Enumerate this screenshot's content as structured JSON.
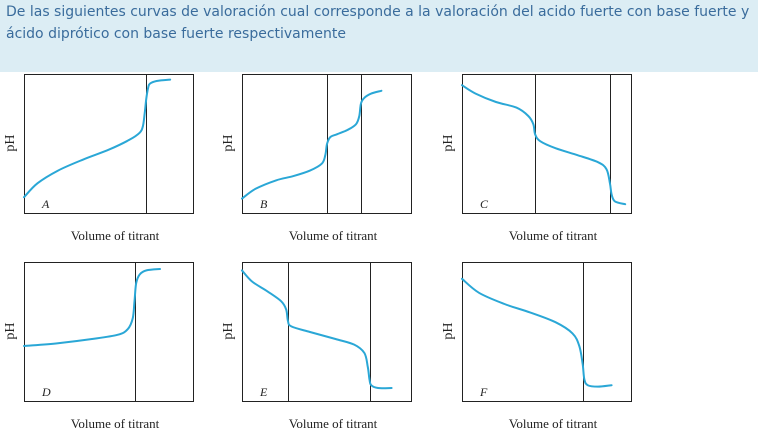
{
  "question": {
    "text": "De las siguientes curvas de valoración cual corresponde a la valoración del acido fuerte con base fuerte y ácido diprótico con base fuerte respectivamente"
  },
  "colors": {
    "curve": "#2aa7d6",
    "frame": "#222222",
    "question_bg": "#dcedf4",
    "question_text": "#3a6c9c"
  },
  "chart_data": [
    {
      "type": "line",
      "letter": "A",
      "ylabel": "pH",
      "xlabel": "Volume of titrant",
      "description_shape": "rising single step",
      "xlim": [
        0,
        1
      ],
      "ylim": [
        0,
        1
      ],
      "equivalence_x": [
        0.72
      ],
      "x": [
        0.0,
        0.08,
        0.2,
        0.35,
        0.5,
        0.62,
        0.68,
        0.7,
        0.71,
        0.72,
        0.73,
        0.74,
        0.78,
        0.86
      ],
      "y": [
        0.12,
        0.22,
        0.31,
        0.39,
        0.46,
        0.53,
        0.58,
        0.63,
        0.72,
        0.83,
        0.9,
        0.93,
        0.95,
        0.96
      ]
    },
    {
      "type": "line",
      "letter": "B",
      "ylabel": "pH",
      "xlabel": "Volume of titrant",
      "xlim": [
        0,
        1
      ],
      "ylim": [
        0,
        1
      ],
      "equivalence_x": [
        0.5,
        0.7
      ],
      "x": [
        0.0,
        0.08,
        0.2,
        0.3,
        0.4,
        0.47,
        0.49,
        0.5,
        0.52,
        0.56,
        0.62,
        0.67,
        0.69,
        0.7,
        0.72,
        0.76,
        0.82
      ],
      "y": [
        0.11,
        0.18,
        0.24,
        0.27,
        0.31,
        0.36,
        0.42,
        0.5,
        0.55,
        0.57,
        0.6,
        0.64,
        0.7,
        0.79,
        0.83,
        0.86,
        0.88
      ]
    },
    {
      "type": "line",
      "letter": "C",
      "ylabel": "pH",
      "xlabel": "Volume of titrant",
      "xlim": [
        0,
        1
      ],
      "ylim": [
        0,
        1
      ],
      "equivalence_x": [
        0.43,
        0.87
      ],
      "x": [
        0.0,
        0.08,
        0.2,
        0.32,
        0.39,
        0.42,
        0.43,
        0.46,
        0.55,
        0.68,
        0.8,
        0.85,
        0.87,
        0.88,
        0.9,
        0.96
      ],
      "y": [
        0.92,
        0.86,
        0.8,
        0.76,
        0.7,
        0.64,
        0.57,
        0.52,
        0.47,
        0.42,
        0.37,
        0.32,
        0.22,
        0.14,
        0.09,
        0.07
      ]
    },
    {
      "type": "line",
      "letter": "D",
      "ylabel": "pH",
      "xlabel": "Volume of titrant",
      "xlim": [
        0,
        1
      ],
      "ylim": [
        0,
        1
      ],
      "equivalence_x": [
        0.65
      ],
      "x": [
        0.0,
        0.2,
        0.4,
        0.55,
        0.61,
        0.64,
        0.65,
        0.66,
        0.68,
        0.72,
        0.8
      ],
      "y": [
        0.4,
        0.42,
        0.45,
        0.48,
        0.52,
        0.6,
        0.72,
        0.85,
        0.91,
        0.94,
        0.95
      ]
    },
    {
      "type": "line",
      "letter": "E",
      "ylabel": "pH",
      "xlabel": "Volume of titrant",
      "xlim": [
        0,
        1
      ],
      "ylim": [
        0,
        1
      ],
      "equivalence_x": [
        0.27,
        0.75
      ],
      "x": [
        0.0,
        0.06,
        0.15,
        0.23,
        0.26,
        0.27,
        0.29,
        0.4,
        0.55,
        0.66,
        0.72,
        0.74,
        0.75,
        0.76,
        0.8,
        0.88
      ],
      "y": [
        0.94,
        0.86,
        0.79,
        0.72,
        0.66,
        0.58,
        0.54,
        0.5,
        0.45,
        0.41,
        0.35,
        0.25,
        0.16,
        0.12,
        0.1,
        0.1
      ]
    },
    {
      "type": "line",
      "letter": "F",
      "ylabel": "pH",
      "xlabel": "Volume of titrant",
      "xlim": [
        0,
        1
      ],
      "ylim": [
        0,
        1
      ],
      "equivalence_x": [
        0.71
      ],
      "x": [
        0.0,
        0.1,
        0.25,
        0.4,
        0.55,
        0.65,
        0.69,
        0.71,
        0.72,
        0.74,
        0.8,
        0.88
      ],
      "y": [
        0.88,
        0.78,
        0.7,
        0.64,
        0.57,
        0.49,
        0.4,
        0.27,
        0.16,
        0.12,
        0.11,
        0.12
      ]
    }
  ]
}
